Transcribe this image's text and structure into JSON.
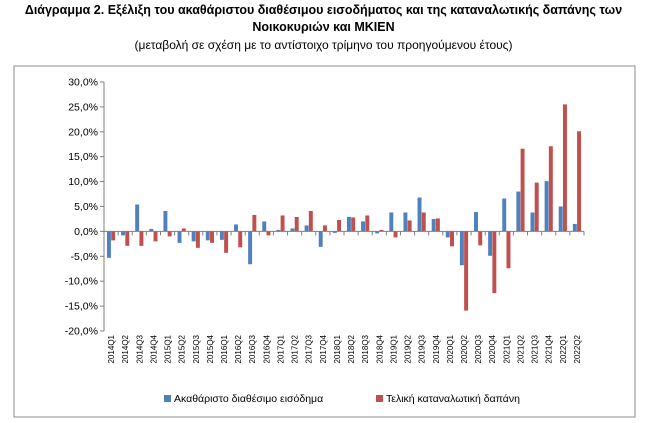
{
  "title_line1": "Διάγραμμα 2. Εξέλιξη του ακαθάριστου διαθέσιμου εισοδήματος και της καταναλωτικής δαπάνης των",
  "title_line2": "Νοικοκυριών και ΜΚΙΕΝ",
  "subtitle": "(μεταβολή σε σχέση με το αντίστοιχο τρίμηνο του προηγούμενου έτους)",
  "colors": {
    "series1": "#4f81bd",
    "series2": "#c0504d",
    "axis": "#7f7f7f",
    "frame": "#8c8c8c"
  },
  "chart_data": {
    "type": "bar",
    "title": "",
    "xlabel": "",
    "ylabel": "",
    "ylim": [
      -20,
      30
    ],
    "ystep": 5,
    "ytick_labels": [
      "30,0%",
      "25,0%",
      "20,0%",
      "15,0%",
      "10,0%",
      "5,0%",
      "0,0%",
      "-5,0%",
      "-10,0%",
      "-15,0%",
      "-20,0%"
    ],
    "legend_position": "bottom",
    "grid": false,
    "categories": [
      "2014Q1",
      "2014Q2",
      "2014Q3",
      "2014Q4",
      "2015Q1",
      "2015Q2",
      "2015Q3",
      "2015Q4",
      "2016Q1",
      "2016Q2",
      "2016Q3",
      "2016Q4",
      "2017Q1",
      "2017Q2",
      "2017Q3",
      "2017Q4",
      "2018Q1",
      "2018Q2",
      "2018Q3",
      "2018Q4",
      "2019Q1",
      "2019Q2",
      "2019Q3",
      "2019Q4",
      "2020Q1",
      "2020Q2",
      "2020Q3",
      "2020Q4",
      "2021Q1",
      "2021Q2",
      "2021Q3",
      "2021Q4",
      "2022Q1",
      "2022Q2"
    ],
    "series": [
      {
        "name": "Ακαθάριστο διαθέσιμο εισόδημα",
        "values": [
          -5.3,
          -0.8,
          5.4,
          0.5,
          4.1,
          -2.3,
          -2.0,
          -1.8,
          -1.7,
          1.4,
          -6.6,
          2.0,
          0.3,
          0.6,
          1.2,
          -3.1,
          -0.3,
          2.9,
          2.0,
          -0.4,
          3.8,
          3.8,
          6.8,
          2.5,
          -1.2,
          -6.8,
          3.9,
          -4.9,
          6.6,
          8.0,
          3.8,
          10.1,
          5.0,
          1.5
        ]
      },
      {
        "name": "Τελική καταναλωτική δαπάνη",
        "values": [
          -1.8,
          -2.9,
          -2.9,
          -2.0,
          -1.0,
          0.6,
          -3.3,
          -2.3,
          -4.3,
          -3.2,
          3.3,
          -0.8,
          3.2,
          2.9,
          4.1,
          1.2,
          2.3,
          2.8,
          3.2,
          0.3,
          -1.2,
          2.2,
          3.8,
          2.6,
          -3.0,
          -15.9,
          -2.8,
          -12.4,
          -7.4,
          16.6,
          9.8,
          17.1,
          25.5,
          20.1
        ]
      }
    ]
  }
}
